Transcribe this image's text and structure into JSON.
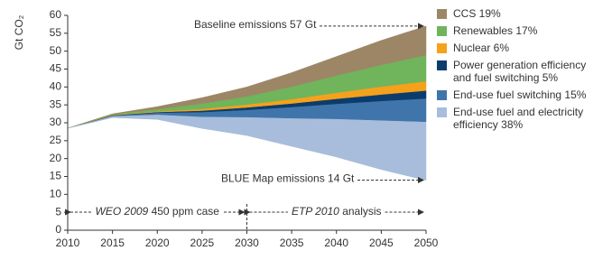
{
  "chart_data": {
    "type": "stacked-area",
    "y_label": "Gt CO₂",
    "x": [
      2010,
      2015,
      2020,
      2025,
      2030,
      2035,
      2040,
      2045,
      2050
    ],
    "xlim": [
      2010,
      2050
    ],
    "xticks": [
      2010,
      2015,
      2020,
      2025,
      2030,
      2035,
      2040,
      2045,
      2050
    ],
    "ylim": [
      0,
      60
    ],
    "yticks": [
      0,
      5,
      10,
      15,
      20,
      25,
      30,
      35,
      40,
      45,
      50,
      55,
      60
    ],
    "blue_map_emissions": [
      28.5,
      31.5,
      31,
      28.5,
      26.5,
      23.5,
      20.5,
      17,
      14
    ],
    "series": [
      {
        "name": "End-use fuel and electricity efficiency 38%",
        "color": "#a7bddb",
        "values": [
          0,
          0.4,
          1.3,
          3.2,
          5.1,
          7.8,
          10.6,
          13.7,
          16.3
        ]
      },
      {
        "name": "End-use fuel switching 15%",
        "color": "#4075ab",
        "values": [
          0,
          0.1,
          0.5,
          1.3,
          2.0,
          3.1,
          4.2,
          5.4,
          6.5
        ]
      },
      {
        "name": "Power generation efficiency and fuel switching 5%",
        "color": "#0c3c6c",
        "values": [
          0,
          0.1,
          0.2,
          0.4,
          0.7,
          1.0,
          1.4,
          1.8,
          2.2
        ]
      },
      {
        "name": "Nuclear 6%",
        "color": "#f5a11c",
        "values": [
          0,
          0.1,
          0.2,
          0.5,
          0.8,
          1.2,
          1.7,
          2.2,
          2.6
        ]
      },
      {
        "name": "Renewables 17%",
        "color": "#70b45c",
        "values": [
          0,
          0.2,
          0.6,
          1.5,
          2.3,
          3.5,
          4.8,
          6.1,
          7.3
        ]
      },
      {
        "name": "CCS 19%",
        "color": "#9d8666",
        "values": [
          0,
          0.1,
          0.7,
          1.6,
          2.6,
          3.9,
          5.3,
          6.8,
          8.1
        ]
      }
    ],
    "annotations": {
      "baseline": "Baseline emissions 57 Gt",
      "blue_map": "BLUE Map emissions 14 Gt",
      "left_period": {
        "italic": "WEO 2009",
        "rest": "450 ppm case"
      },
      "right_period": {
        "italic": "ETP 2010",
        "rest": "analysis"
      }
    }
  }
}
